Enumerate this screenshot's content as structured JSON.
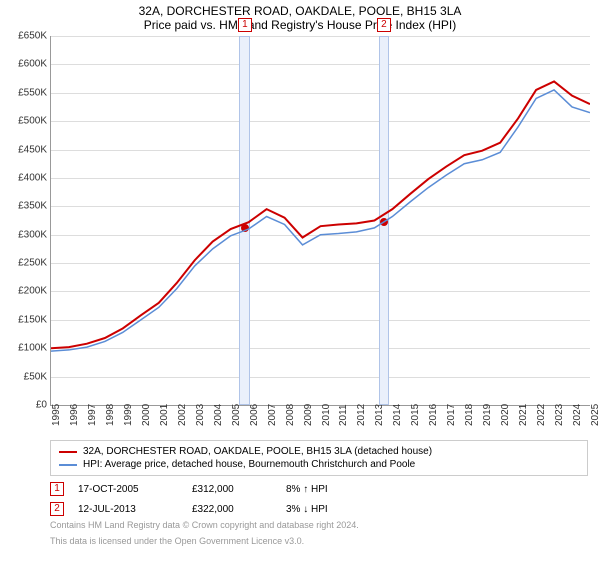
{
  "title": "32A, DORCHESTER ROAD, OAKDALE, POOLE, BH15 3LA",
  "subtitle": "Price paid vs. HM Land Registry's House Price Index (HPI)",
  "chart": {
    "type": "line",
    "background_color": "#ffffff",
    "grid_color": "#dddddd",
    "ylim": [
      0,
      650000
    ],
    "ytick_step": 50000,
    "ytick_prefix": "£",
    "ytick_suffix": "K",
    "xlim": [
      1995,
      2025
    ],
    "xtick_step": 1,
    "series": [
      {
        "name": "32A, DORCHESTER ROAD, OAKDALE, POOLE, BH15 3LA (detached house)",
        "color": "#cc0000",
        "line_width": 2,
        "data": [
          [
            1995,
            100000
          ],
          [
            1996,
            102000
          ],
          [
            1997,
            108000
          ],
          [
            1998,
            118000
          ],
          [
            1999,
            135000
          ],
          [
            2000,
            158000
          ],
          [
            2001,
            180000
          ],
          [
            2002,
            215000
          ],
          [
            2003,
            255000
          ],
          [
            2004,
            288000
          ],
          [
            2005,
            310000
          ],
          [
            2006,
            322000
          ],
          [
            2007,
            345000
          ],
          [
            2008,
            330000
          ],
          [
            2009,
            295000
          ],
          [
            2010,
            315000
          ],
          [
            2011,
            318000
          ],
          [
            2012,
            320000
          ],
          [
            2013,
            325000
          ],
          [
            2014,
            345000
          ],
          [
            2015,
            372000
          ],
          [
            2016,
            398000
          ],
          [
            2017,
            420000
          ],
          [
            2018,
            440000
          ],
          [
            2019,
            448000
          ],
          [
            2020,
            462000
          ],
          [
            2021,
            505000
          ],
          [
            2022,
            555000
          ],
          [
            2023,
            570000
          ],
          [
            2024,
            545000
          ],
          [
            2025,
            530000
          ]
        ]
      },
      {
        "name": "HPI: Average price, detached house, Bournemouth Christchurch and Poole",
        "color": "#5b8dd6",
        "line_width": 1.5,
        "data": [
          [
            1995,
            95000
          ],
          [
            1996,
            97000
          ],
          [
            1997,
            102000
          ],
          [
            1998,
            112000
          ],
          [
            1999,
            128000
          ],
          [
            2000,
            150000
          ],
          [
            2001,
            172000
          ],
          [
            2002,
            205000
          ],
          [
            2003,
            245000
          ],
          [
            2004,
            275000
          ],
          [
            2005,
            298000
          ],
          [
            2006,
            310000
          ],
          [
            2007,
            332000
          ],
          [
            2008,
            318000
          ],
          [
            2009,
            282000
          ],
          [
            2010,
            300000
          ],
          [
            2011,
            302000
          ],
          [
            2012,
            305000
          ],
          [
            2013,
            312000
          ],
          [
            2014,
            332000
          ],
          [
            2015,
            358000
          ],
          [
            2016,
            383000
          ],
          [
            2017,
            405000
          ],
          [
            2018,
            425000
          ],
          [
            2019,
            432000
          ],
          [
            2020,
            445000
          ],
          [
            2021,
            490000
          ],
          [
            2022,
            540000
          ],
          [
            2023,
            555000
          ],
          [
            2024,
            525000
          ],
          [
            2025,
            515000
          ]
        ]
      }
    ],
    "markers": [
      {
        "label": "1",
        "date": "17-OCT-2005",
        "x": 2005.79,
        "price": "£312,000",
        "delta": "8% ↑ HPI",
        "point_y": 312000,
        "band_width_years": 0.6
      },
      {
        "label": "2",
        "date": "12-JUL-2013",
        "x": 2013.53,
        "price": "£322,000",
        "delta": "3% ↓ HPI",
        "point_y": 322000,
        "band_width_years": 0.6
      }
    ]
  },
  "legend_header_1": "32A, DORCHESTER ROAD, OAKDALE, POOLE, BH15 3LA (detached house)",
  "legend_header_2": "HPI: Average price, detached house, Bournemouth Christchurch and Poole",
  "footnote1": "Contains HM Land Registry data © Crown copyright and database right 2024.",
  "footnote2": "This data is licensed under the Open Government Licence v3.0."
}
